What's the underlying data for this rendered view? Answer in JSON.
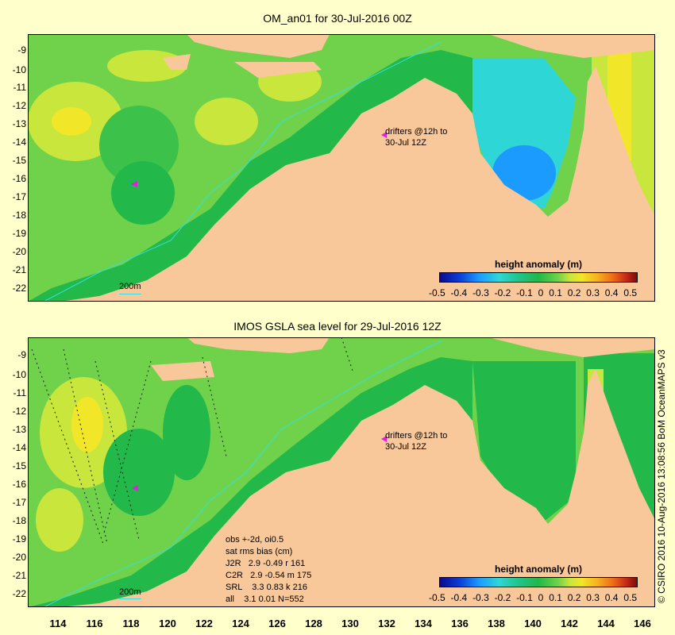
{
  "top_map": {
    "title": "OM_an01 for 30-Jul-2016 00Z",
    "y_ticks": [
      "-9",
      "-10",
      "-11",
      "-12",
      "-13",
      "-14",
      "-15",
      "-16",
      "-17",
      "-18",
      "-19",
      "-20",
      "-21",
      "-22"
    ],
    "drifters_label_line1": "drifters @12h to",
    "drifters_label_line2": "30-Jul 12Z",
    "depth_label": "200m"
  },
  "bottom_map": {
    "title": "IMOS GSLA sea level  for 29-Jul-2016 12Z",
    "y_ticks": [
      "-9",
      "-10",
      "-11",
      "-12",
      "-13",
      "-14",
      "-15",
      "-16",
      "-17",
      "-18",
      "-19",
      "-20",
      "-21",
      "-22"
    ],
    "drifters_label_line1": "drifters @12h to",
    "drifters_label_line2": "30-Jul 12Z",
    "depth_label": "200m",
    "stats": {
      "line1": "obs +-2d, oi0.5",
      "line2": "sat rms bias (cm)",
      "line3": "J2R   2.9 -0.49 r 161",
      "line4": "C2R   2.9 -0.54 m 175",
      "line5": "SRL    3.3 0.83 k 216",
      "line6": "all    3.1 0.01 N=552"
    }
  },
  "colorbar": {
    "title": "height anomaly (m)",
    "ticks": [
      "-0.5",
      "-0.4",
      "-0.3",
      "-0.2",
      "-0.1",
      "0",
      "0.1",
      "0.2",
      "0.3",
      "0.4",
      "0.5"
    ],
    "min": -0.5,
    "max": 0.5
  },
  "x_ticks": [
    "114",
    "116",
    "118",
    "120",
    "122",
    "124",
    "126",
    "128",
    "130",
    "132",
    "134",
    "136",
    "138",
    "140",
    "142",
    "144",
    "146"
  ],
  "credit": "© CSIRO 2016  10-Aug-2016 13:08:56 BoM OceanMAPS v3",
  "colors": {
    "background": "#ffffcc",
    "land": "#f9c89a",
    "shelf": "#22b84a",
    "ocean": "#6fd24a",
    "contour_200m": "#30e0e0",
    "drifter": "#e020e0"
  }
}
